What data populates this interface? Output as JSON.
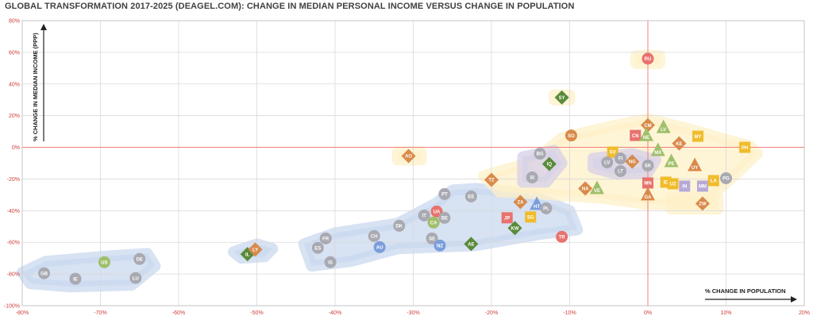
{
  "chart_data": {
    "type": "scatter",
    "title": "GLOBAL TRANSFORMATION 2017-2025 (DEAGEL.COM): CHANGE IN MEDIAN PERSONAL INCOME VERSUS CHANGE IN POPULATION",
    "xlabel": "% CHANGE IN POPULATION",
    "ylabel": "% CHANGE IN MEDIAN INCOME (PPP)",
    "xlim": [
      -80,
      20
    ],
    "ylim": [
      -100,
      80
    ],
    "x_ticks": [
      "-80%",
      "-70%",
      "-60%",
      "-50%",
      "-40%",
      "-30%",
      "-20%",
      "-10%",
      "0%",
      "10%",
      "20%"
    ],
    "y_ticks": [
      "80%",
      "60%",
      "40%",
      "20%",
      "0%",
      "-20%",
      "-40%",
      "-60%",
      "-80%",
      "-100%"
    ],
    "grid": true,
    "colors": {
      "grey": "#a9a9b1",
      "green": "#75924f",
      "orange": "#d88a4a",
      "salmon": "#e8726d",
      "yellow": "#f0bc2c",
      "blue": "#7c9ddb",
      "lavender": "#b6a9d6",
      "darkgreen": "#5a8a3a",
      "lightgreen": "#9fbf6a",
      "grey_cluster": "#a8a8b0",
      "axis_red": "#f08080",
      "cluster_blue": "#c9d8ef",
      "cluster_yellow": "#fdf0c8",
      "cluster_lavender": "#d6d0e8"
    },
    "points": [
      {
        "label": "GB",
        "x": -77.2,
        "y": -79.5,
        "shape": "circle",
        "color": "grey"
      },
      {
        "label": "IE",
        "x": -73.2,
        "y": -83,
        "shape": "circle",
        "color": "grey"
      },
      {
        "label": "US",
        "x": -69.5,
        "y": -72.5,
        "shape": "circle",
        "color": "lightgreen"
      },
      {
        "label": "DE",
        "x": -65,
        "y": -70.5,
        "shape": "circle",
        "color": "grey"
      },
      {
        "label": "LU",
        "x": -65.5,
        "y": -82.5,
        "shape": "circle",
        "color": "grey"
      },
      {
        "label": "IL",
        "x": -51.2,
        "y": -67.5,
        "shape": "diamond",
        "color": "darkgreen"
      },
      {
        "label": "LY",
        "x": -50.2,
        "y": -64.5,
        "shape": "diamond",
        "color": "orange"
      },
      {
        "label": "FR",
        "x": -41.2,
        "y": -57.5,
        "shape": "circle",
        "color": "grey"
      },
      {
        "label": "ES",
        "x": -42.2,
        "y": -63.5,
        "shape": "circle",
        "color": "grey"
      },
      {
        "label": "IS",
        "x": -40.6,
        "y": -72.5,
        "shape": "circle",
        "color": "grey"
      },
      {
        "label": "CH",
        "x": -35,
        "y": -56,
        "shape": "circle",
        "color": "grey"
      },
      {
        "label": "AU",
        "x": -34.3,
        "y": -63,
        "shape": "circle",
        "color": "blue"
      },
      {
        "label": "DK",
        "x": -31.8,
        "y": -49.5,
        "shape": "circle",
        "color": "grey"
      },
      {
        "label": "AO",
        "x": -30.6,
        "y": -5.5,
        "shape": "diamond",
        "color": "orange"
      },
      {
        "label": "IT",
        "x": -28.6,
        "y": -43,
        "shape": "circle",
        "color": "grey"
      },
      {
        "label": "UA",
        "x": -27,
        "y": -40.5,
        "shape": "circle",
        "color": "salmon"
      },
      {
        "label": "CA",
        "x": -27.4,
        "y": -47.5,
        "shape": "circle",
        "color": "lightgreen"
      },
      {
        "label": "BE",
        "x": -26,
        "y": -44.5,
        "shape": "circle",
        "color": "grey"
      },
      {
        "label": "PT",
        "x": -26,
        "y": -29.5,
        "shape": "circle",
        "color": "grey"
      },
      {
        "label": "SE",
        "x": -27.6,
        "y": -57.5,
        "shape": "circle",
        "color": "grey"
      },
      {
        "label": "NZ",
        "x": -26.6,
        "y": -62,
        "shape": "circle",
        "color": "blue"
      },
      {
        "label": "AE",
        "x": -22.6,
        "y": -61,
        "shape": "diamond",
        "color": "darkgreen"
      },
      {
        "label": "EE",
        "x": -22.6,
        "y": -31,
        "shape": "circle",
        "color": "grey"
      },
      {
        "label": "TZ",
        "x": -20,
        "y": -20.5,
        "shape": "diamond",
        "color": "orange"
      },
      {
        "label": "JP",
        "x": -18,
        "y": -44.5,
        "shape": "square",
        "color": "salmon"
      },
      {
        "label": "KW",
        "x": -17,
        "y": -51,
        "shape": "diamond",
        "color": "darkgreen"
      },
      {
        "label": "ZA",
        "x": -16.3,
        "y": -34.5,
        "shape": "diamond",
        "color": "orange"
      },
      {
        "label": "SG",
        "x": -15,
        "y": -44,
        "shape": "square",
        "color": "yellow"
      },
      {
        "label": "SI",
        "x": -14.8,
        "y": -19,
        "shape": "circle",
        "color": "grey"
      },
      {
        "label": "BG",
        "x": -13.8,
        "y": -4,
        "shape": "circle",
        "color": "grey"
      },
      {
        "label": "IQ",
        "x": -12.6,
        "y": -10.5,
        "shape": "diamond",
        "color": "darkgreen"
      },
      {
        "label": "HT",
        "x": -14.2,
        "y": -36,
        "shape": "triangle",
        "color": "blue"
      },
      {
        "label": "PL",
        "x": -13,
        "y": -38.5,
        "shape": "circle",
        "color": "grey"
      },
      {
        "label": "SY",
        "x": -11,
        "y": 31.5,
        "shape": "diamond",
        "color": "darkgreen"
      },
      {
        "label": "TR",
        "x": -11,
        "y": -56.5,
        "shape": "circle",
        "color": "salmon"
      },
      {
        "label": "SO",
        "x": -9.8,
        "y": 7.5,
        "shape": "circle",
        "color": "orange"
      },
      {
        "label": "NA",
        "x": -8,
        "y": -26,
        "shape": "diamond",
        "color": "orange"
      },
      {
        "label": "VE",
        "x": -6.5,
        "y": -26,
        "shape": "triangle",
        "color": "lightgreen"
      },
      {
        "label": "SV",
        "x": -4.5,
        "y": -3,
        "shape": "square",
        "color": "yellow"
      },
      {
        "label": "LV",
        "x": -5.2,
        "y": -9.5,
        "shape": "circle",
        "color": "grey"
      },
      {
        "label": "FI",
        "x": -3.5,
        "y": -7,
        "shape": "circle",
        "color": "grey"
      },
      {
        "label": "LT",
        "x": -3.5,
        "y": -15,
        "shape": "circle",
        "color": "grey"
      },
      {
        "label": "NG",
        "x": -2,
        "y": -9,
        "shape": "diamond",
        "color": "orange"
      },
      {
        "label": "CN",
        "x": -1.6,
        "y": 7.5,
        "shape": "square",
        "color": "salmon"
      },
      {
        "label": "RU",
        "x": 0,
        "y": 56,
        "shape": "circle",
        "color": "salmon"
      },
      {
        "label": "CM",
        "x": 0,
        "y": 14,
        "shape": "diamond",
        "color": "orange"
      },
      {
        "label": "NE",
        "x": -0.2,
        "y": 7.5,
        "shape": "triangle",
        "color": "lightgreen"
      },
      {
        "label": "MX",
        "x": 1.3,
        "y": -2,
        "shape": "triangle",
        "color": "lightgreen"
      },
      {
        "label": "LV",
        "x": 2,
        "y": 12.5,
        "shape": "triangle",
        "color": "lightgreen"
      },
      {
        "label": "SK",
        "x": 0,
        "y": -11.5,
        "shape": "circle",
        "color": "grey"
      },
      {
        "label": "MN",
        "x": 0,
        "y": -22.5,
        "shape": "square",
        "color": "salmon"
      },
      {
        "label": "GA",
        "x": 0,
        "y": -30,
        "shape": "triangle",
        "color": "orange"
      },
      {
        "label": "PE",
        "x": 3,
        "y": -9,
        "shape": "triangle",
        "color": "lightgreen"
      },
      {
        "label": "KE",
        "x": 4,
        "y": 2.5,
        "shape": "diamond",
        "color": "orange"
      },
      {
        "label": "MY",
        "x": 6.4,
        "y": 7,
        "shape": "square",
        "color": "yellow"
      },
      {
        "label": "UY",
        "x": 6,
        "y": -11.5,
        "shape": "triangle",
        "color": "orange"
      },
      {
        "label": "ID",
        "x": 2.3,
        "y": -22,
        "shape": "square",
        "color": "yellow"
      },
      {
        "label": "UZ",
        "x": 3.2,
        "y": -23,
        "shape": "square",
        "color": "yellow"
      },
      {
        "label": "IN",
        "x": 4.7,
        "y": -24.5,
        "shape": "square",
        "color": "lavender"
      },
      {
        "label": "MM",
        "x": 7,
        "y": -24.5,
        "shape": "square",
        "color": "lavender"
      },
      {
        "label": "LA",
        "x": 8.4,
        "y": -21,
        "shape": "square",
        "color": "yellow"
      },
      {
        "label": "PG",
        "x": 10,
        "y": -19.5,
        "shape": "circle",
        "color": "grey"
      },
      {
        "label": "ZW",
        "x": 7,
        "y": -35.5,
        "shape": "diamond",
        "color": "orange"
      },
      {
        "label": "PH",
        "x": 12.4,
        "y": 0,
        "shape": "square",
        "color": "yellow"
      }
    ]
  }
}
